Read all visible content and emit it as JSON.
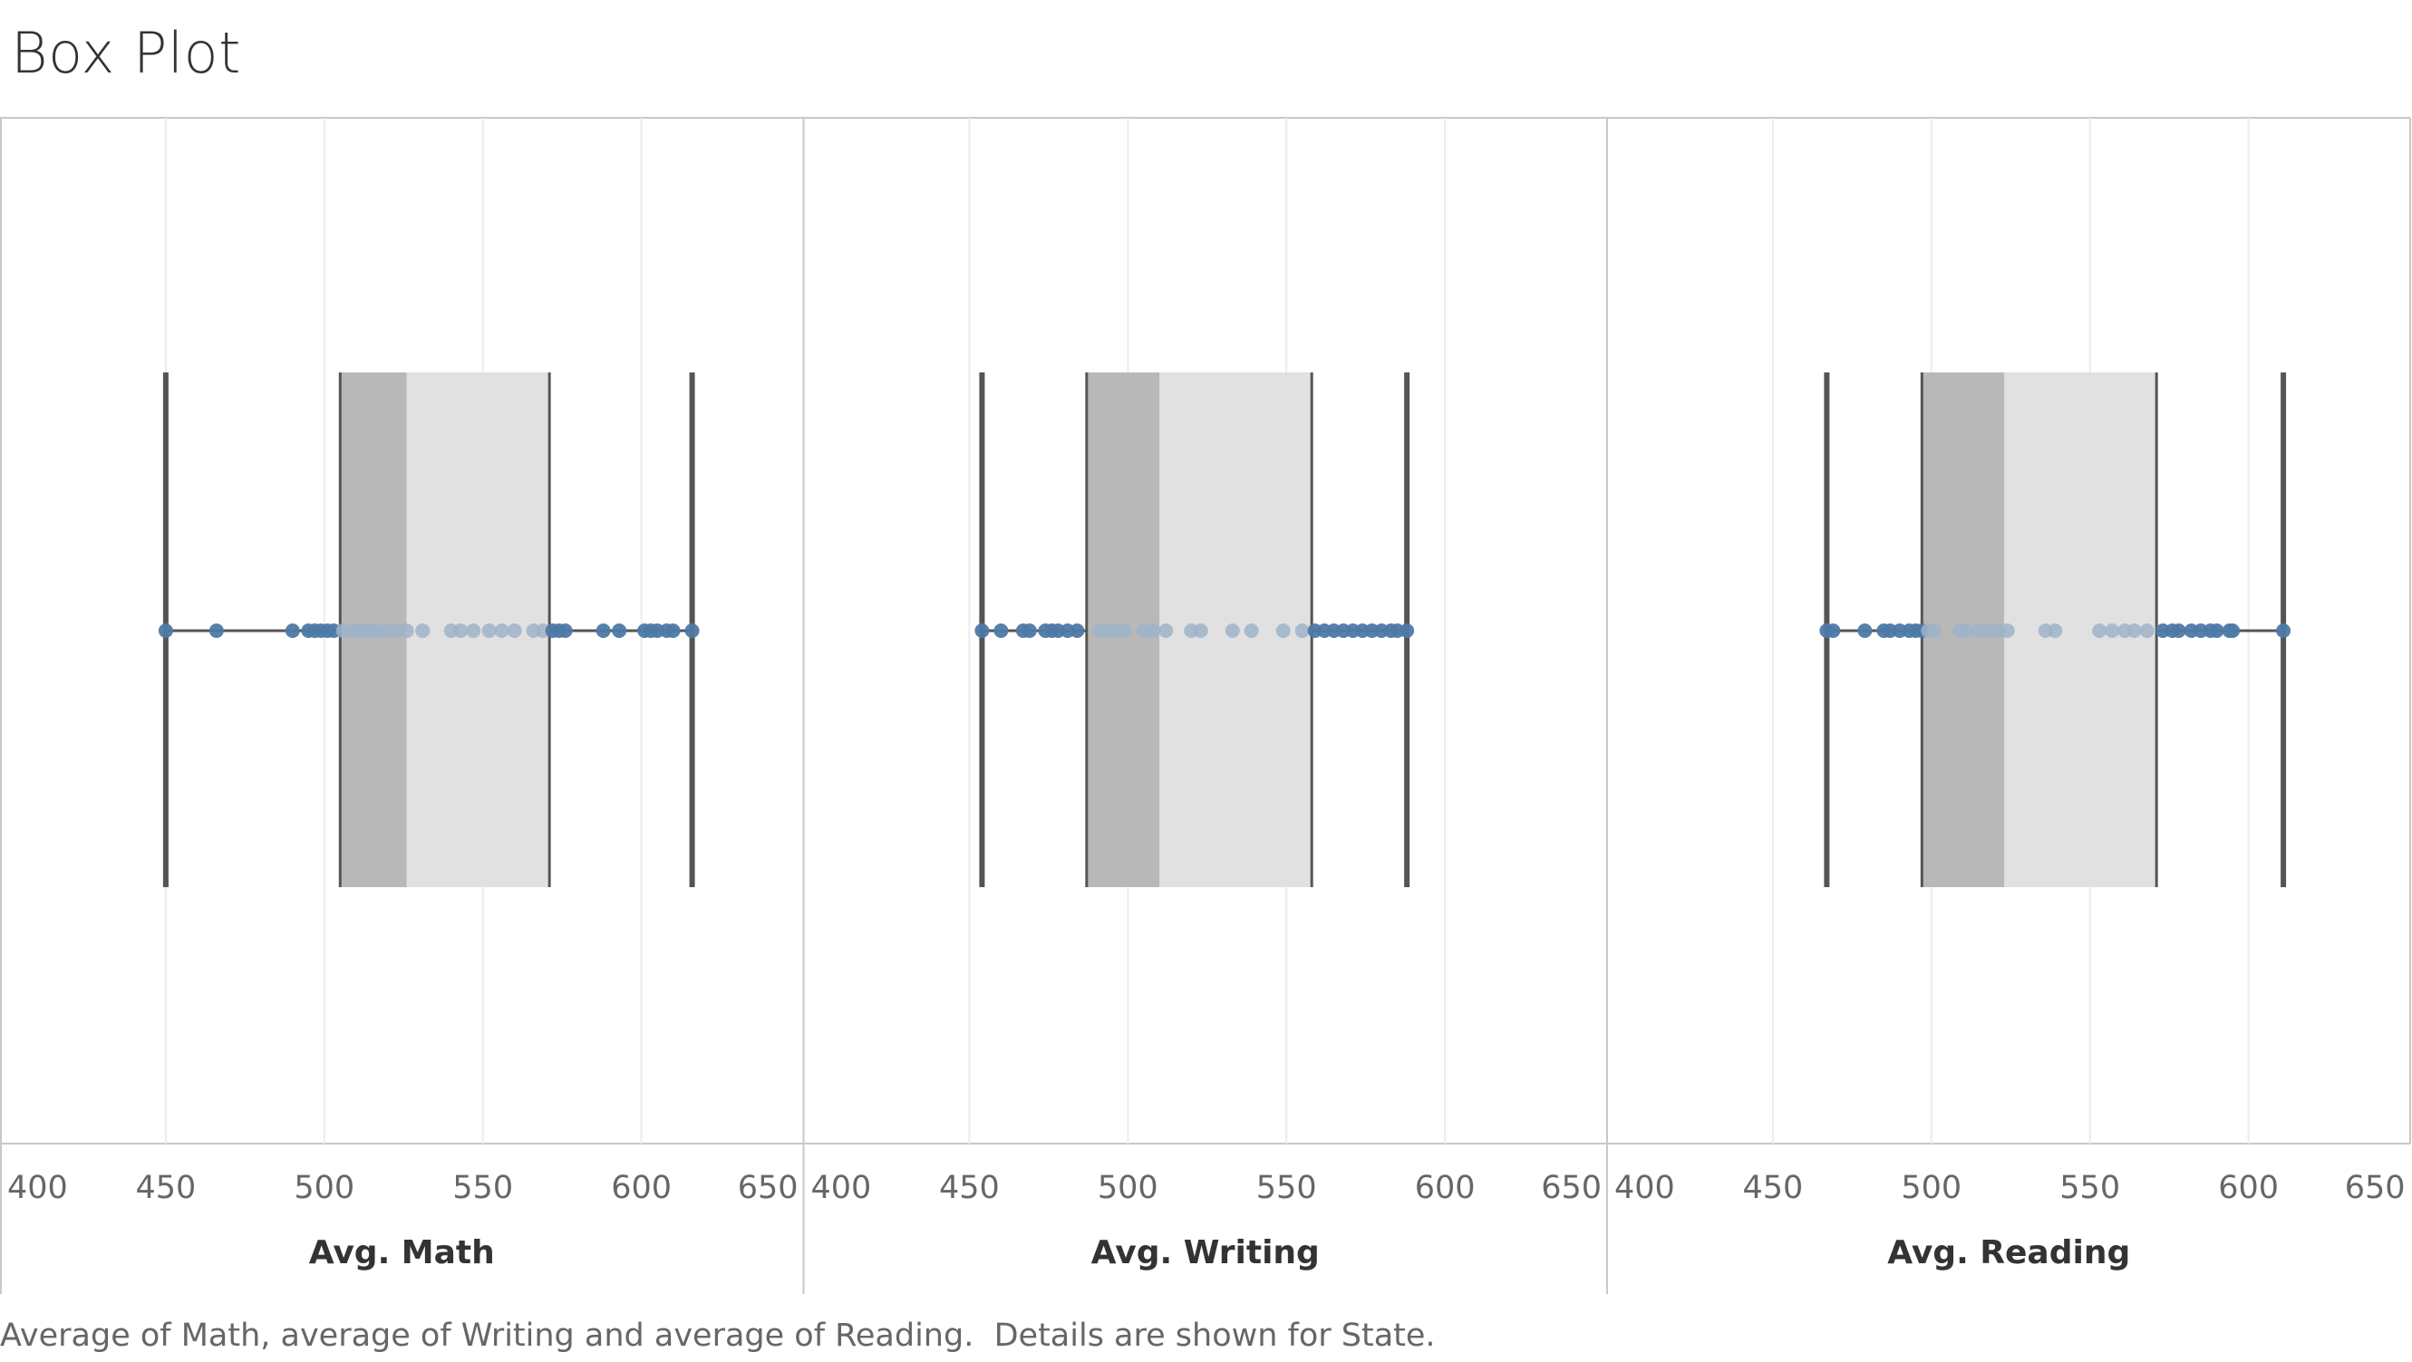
{
  "title": "Box Plot",
  "footer": "Average of Math, average of Writing and average of Reading.  Details are shown for State.",
  "colors": {
    "point": "#4e79a7",
    "point_faded": "#9fb3c8",
    "lower_box": "#b8b8b8",
    "upper_box": "#e1e1e1",
    "whisker": "#555555",
    "grid": "#ececec",
    "border": "#c8c8c8"
  },
  "chart_data": [
    {
      "type": "box",
      "xlabel": "Avg. Math",
      "xlim": [
        400,
        650
      ],
      "ticks": [
        400,
        450,
        500,
        550,
        600,
        650
      ],
      "whisker_low": 450,
      "q1": 505,
      "median": 526,
      "q3": 571,
      "whisker_high": 616,
      "points": [
        450,
        466,
        490,
        495,
        497,
        499,
        501,
        503,
        506,
        509,
        511,
        513,
        515,
        517,
        520,
        523,
        526,
        531,
        540,
        543,
        547,
        552,
        556,
        560,
        566,
        569,
        572,
        574,
        576,
        588,
        593,
        601,
        603,
        605,
        608,
        610,
        616
      ]
    },
    {
      "type": "box",
      "xlabel": "Avg. Writing",
      "xlim": [
        400,
        650
      ],
      "ticks": [
        400,
        450,
        500,
        550,
        600,
        650
      ],
      "whisker_low": 454,
      "q1": 487,
      "median": 510,
      "q3": 558,
      "whisker_high": 588,
      "points": [
        454,
        460,
        467,
        469,
        474,
        476,
        478,
        481,
        484,
        491,
        494,
        496,
        499,
        505,
        508,
        512,
        520,
        523,
        533,
        539,
        549,
        555,
        559,
        562,
        565,
        568,
        571,
        574,
        577,
        580,
        583,
        585,
        588
      ]
    },
    {
      "type": "box",
      "xlabel": "Avg. Reading",
      "xlim": [
        400,
        650
      ],
      "ticks": [
        400,
        450,
        500,
        550,
        600,
        650
      ],
      "whisker_low": 467,
      "q1": 497,
      "median": 523,
      "q3": 571,
      "whisker_high": 611,
      "points": [
        467,
        469,
        479,
        485,
        487,
        490,
        493,
        495,
        497,
        499,
        501,
        509,
        511,
        515,
        518,
        521,
        524,
        536,
        539,
        553,
        557,
        561,
        564,
        568,
        573,
        576,
        578,
        582,
        585,
        588,
        590,
        594,
        595,
        611
      ]
    }
  ]
}
